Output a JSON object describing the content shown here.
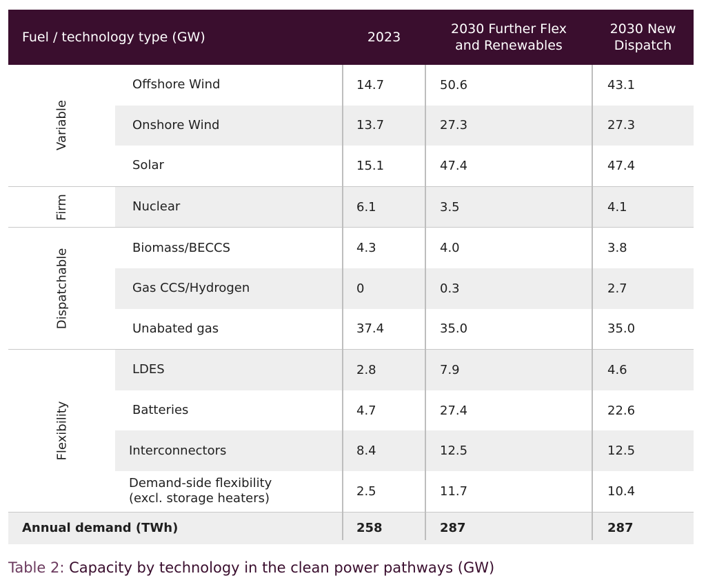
{
  "header": {
    "col_name": "Fuel / technology type (GW)",
    "col_2023": "2023",
    "col_flex_line1": "2030 Further Flex",
    "col_flex_line2": "and Renewables",
    "col_dispatch_line1": "2030 New",
    "col_dispatch_line2": "Dispatch"
  },
  "groups": [
    {
      "label": "Variable",
      "rows": [
        {
          "name": "Offshore Wind",
          "v2023": "14.7",
          "flex": "50.6",
          "dispatch": "43.1"
        },
        {
          "name": "Onshore Wind",
          "v2023": "13.7",
          "flex": "27.3",
          "dispatch": "27.3"
        },
        {
          "name": "Solar",
          "v2023": "15.1",
          "flex": "47.4",
          "dispatch": "47.4"
        }
      ]
    },
    {
      "label": "Firm",
      "rows": [
        {
          "name": "Nuclear",
          "v2023": "6.1",
          "flex": "3.5",
          "dispatch": "4.1"
        }
      ]
    },
    {
      "label": "Dispatchable",
      "rows": [
        {
          "name": "Biomass/BECCS",
          "v2023": "4.3",
          "flex": "4.0",
          "dispatch": "3.8"
        },
        {
          "name": "Gas CCS/Hydrogen",
          "v2023": "0",
          "flex": "0.3",
          "dispatch": "2.7"
        },
        {
          "name": "Unabated gas",
          "v2023": "37.4",
          "flex": "35.0",
          "dispatch": "35.0"
        }
      ]
    },
    {
      "label": "Flexibility",
      "rows": [
        {
          "name": "LDES",
          "v2023": "2.8",
          "flex": "7.9",
          "dispatch": "4.6"
        },
        {
          "name": "Batteries",
          "v2023": "4.7",
          "flex": "27.4",
          "dispatch": "22.6"
        },
        {
          "name": "Interconnectors",
          "v2023": "8.4",
          "flex": "12.5",
          "dispatch": "12.5"
        },
        {
          "name_line1": "Demand-side flexibility",
          "name_line2": "(excl. storage heaters)",
          "v2023": "2.5",
          "flex": "11.7",
          "dispatch": "10.4"
        }
      ]
    }
  ],
  "total": {
    "name": "Annual demand (TWh)",
    "v2023": "258",
    "flex": "287",
    "dispatch": "287"
  },
  "caption": {
    "label": "Table 2:",
    "text": "Capacity by technology in the clean power pathways (GW)"
  },
  "colors": {
    "header_bg": "#3a0e2e",
    "shade": "#eeeeee",
    "caption": "#3a0e2e"
  }
}
